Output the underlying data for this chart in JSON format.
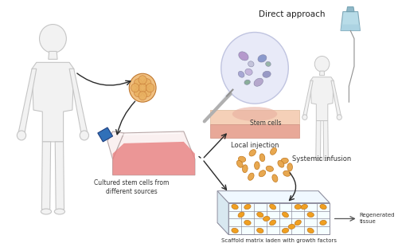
{
  "title": "Direct approach",
  "bg_color": "#ffffff",
  "labels": {
    "cultured": "Cultured stem cells from\ndifferent sources",
    "local_injection": "Local injection",
    "systemic_infusion": "Systemic infusion",
    "stem_cells": "Stem cells",
    "scaffold": "Scaffold matrix laden with growth factors",
    "regenerated": "Regenerated\ntissue"
  },
  "arrow_color": "#2a2a2a",
  "body_color": "#f0f0f0",
  "body_edge_color": "#c8c8c8",
  "cell_color": "#e8a850",
  "cell_edge_color": "#c07820",
  "scaffold_color": "#f0a020",
  "skin_pink": "#f5c0b0",
  "skin_red": "#e89090",
  "inj_circle_color": "#e8eaf8",
  "inj_circle_edge": "#c0c4e0",
  "iv_color": "#b8dce8",
  "flask_body": "#faeaea",
  "flask_liquid": "#e87878",
  "flask_cap": "#4080c0",
  "title_fontsize": 7.5,
  "label_fontsize": 6.0,
  "small_label_fontsize": 5.5
}
